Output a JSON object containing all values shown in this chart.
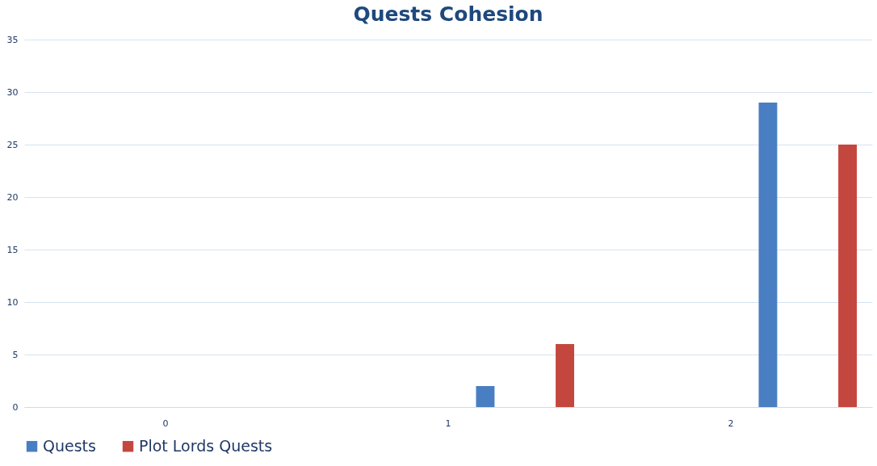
{
  "chart_data": {
    "type": "bar",
    "title": "Quests Cohesion",
    "categories": [
      "0",
      "1",
      "2"
    ],
    "series": [
      {
        "name": "Quests",
        "color": "#4a7ec2",
        "values": [
          0,
          2,
          29
        ]
      },
      {
        "name": "Plot Lords Quests",
        "color": "#c4473f",
        "values": [
          0,
          6,
          25
        ]
      }
    ],
    "ylim": [
      0,
      35
    ],
    "yticks": [
      0,
      5,
      10,
      15,
      20,
      25,
      30,
      35
    ],
    "grid": "y",
    "legend": "bottom"
  }
}
